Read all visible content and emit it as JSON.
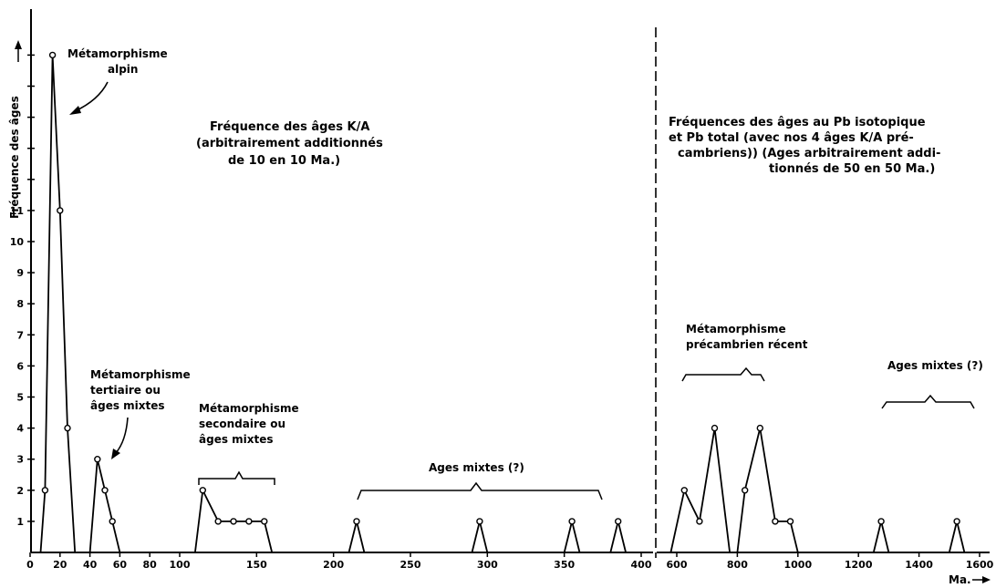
{
  "chart_data": [
    {
      "type": "line",
      "title": "Fréquence des âges K/A (arbitrairement additionnés de 10 en 10 Ma.)",
      "title_lines": [
        "Fréquence des âges K/A",
        "(arbitrairement additionnés",
        "de 10 en 10 Ma.)"
      ],
      "ylabel": "Fréquence des âges",
      "xlabel": "",
      "ylim": [
        0,
        17
      ],
      "y_ticks": [
        1,
        2,
        3,
        4,
        5,
        6,
        7,
        8,
        9,
        10,
        11
      ],
      "x_tick_labels": [
        "0",
        "20",
        "40",
        "60",
        "80",
        "100",
        "150",
        "200",
        "250",
        "300",
        "350",
        "400"
      ],
      "grid": false,
      "series": [
        {
          "x": [
            7,
            10,
            15,
            20,
            25,
            30
          ],
          "y": [
            0,
            2,
            16,
            11,
            4,
            0
          ]
        },
        {
          "x": [
            40,
            45,
            50,
            55,
            60
          ],
          "y": [
            0,
            3,
            2,
            1,
            0
          ]
        },
        {
          "x": [
            110,
            115,
            125,
            135,
            145,
            155,
            160
          ],
          "y": [
            0,
            2,
            1,
            1,
            1,
            1,
            0
          ]
        },
        {
          "x": [
            210,
            215,
            220
          ],
          "y": [
            0,
            1,
            0
          ]
        },
        {
          "x": [
            290,
            295,
            300
          ],
          "y": [
            0,
            1,
            0
          ]
        },
        {
          "x": [
            350,
            355,
            360
          ],
          "y": [
            0,
            1,
            0
          ]
        },
        {
          "x": [
            380,
            385,
            390
          ],
          "y": [
            0,
            1,
            0
          ]
        }
      ],
      "annotations": [
        {
          "lines": [
            "Métamorphisme",
            "alpin"
          ]
        },
        {
          "lines": [
            "Métamorphisme",
            "tertiaire ou",
            "âges mixtes"
          ]
        },
        {
          "lines": [
            "Métamorphisme",
            "secondaire ou",
            "âges mixtes"
          ]
        },
        {
          "lines": [
            "Ages mixtes (?)"
          ]
        }
      ]
    },
    {
      "type": "line",
      "title": "Fréquences des âges au Pb isotopique et Pb total (avec nos 4 âges K/A précambriens) (Ages arbitrairement additionnés de 50 en 50 Ma.)",
      "title_lines": [
        "Fréquences des âges au Pb isotopique",
        "et Pb total (avec nos 4 âges K/A pré-",
        "cambriens)) (Ages arbitrairement addi-",
        "tionnés de 50 en 50 Ma.)"
      ],
      "xlabel": "Ma.",
      "x_tick_labels": [
        "600",
        "800",
        "1000",
        "1200",
        "1400",
        "1600"
      ],
      "grid": false,
      "series": [
        {
          "x": [
            580,
            625,
            675,
            725,
            775
          ],
          "y": [
            0,
            2,
            1,
            4,
            0
          ]
        },
        {
          "x": [
            800,
            825,
            875,
            925,
            975,
            1000
          ],
          "y": [
            0,
            2,
            4,
            1,
            1,
            0
          ]
        },
        {
          "x": [
            1250,
            1275,
            1300
          ],
          "y": [
            0,
            1,
            0
          ]
        },
        {
          "x": [
            1500,
            1525,
            1550
          ],
          "y": [
            0,
            1,
            0
          ]
        }
      ],
      "annotations": [
        {
          "lines": [
            "Métamorphisme",
            "précambrien récent"
          ]
        },
        {
          "lines": [
            "Ages mixtes (?)"
          ]
        }
      ]
    }
  ]
}
